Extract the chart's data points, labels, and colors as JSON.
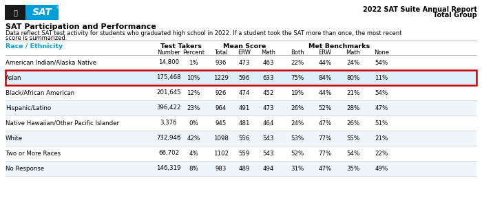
{
  "report_title_line1": "2022 SAT Suite Annual Report",
  "report_title_line2": "Total Group",
  "section_title": "SAT Participation and Performance",
  "desc_line1": "Data reflect SAT test activity for students who graduated high school in 2022. If a student took the SAT more than once, the most recent",
  "desc_line2": "score is summarized.",
  "col_headers": {
    "race": "Race / Ethnicity",
    "test_takers": "Test Takers",
    "mean_score": "Mean Score",
    "met_benchmarks": "Met Benchmarks"
  },
  "sub_headers": [
    "Number",
    "Percent",
    "Total",
    "ERW",
    "Math",
    "Both",
    "ERW",
    "Math",
    "None"
  ],
  "rows": [
    {
      "race": "American Indian/Alaska Native",
      "number": "14,800",
      "percent": "1%",
      "total": "936",
      "erw": "473",
      "math": "463",
      "both": "22%",
      "erw2": "44%",
      "math2": "24%",
      "none": "54%",
      "highlight": false
    },
    {
      "race": "Asian",
      "number": "175,468",
      "percent": "10%",
      "total": "1229",
      "erw": "596",
      "math": "633",
      "both": "75%",
      "erw2": "84%",
      "math2": "80%",
      "none": "11%",
      "highlight": true
    },
    {
      "race": "Black/African American",
      "number": "201,645",
      "percent": "12%",
      "total": "926",
      "erw": "474",
      "math": "452",
      "both": "19%",
      "erw2": "44%",
      "math2": "21%",
      "none": "54%",
      "highlight": false
    },
    {
      "race": "Hispanic/Latino",
      "number": "396,422",
      "percent": "23%",
      "total": "964",
      "erw": "491",
      "math": "473",
      "both": "26%",
      "erw2": "52%",
      "math2": "28%",
      "none": "47%",
      "highlight": false
    },
    {
      "race": "Native Hawaiian/Other Pacific Islander",
      "number": "3,376",
      "percent": "0%",
      "total": "945",
      "erw": "481",
      "math": "464",
      "both": "24%",
      "erw2": "47%",
      "math2": "26%",
      "none": "51%",
      "highlight": false
    },
    {
      "race": "White",
      "number": "732,946",
      "percent": "42%",
      "total": "1098",
      "erw": "556",
      "math": "543",
      "both": "53%",
      "erw2": "77%",
      "math2": "55%",
      "none": "21%",
      "highlight": false
    },
    {
      "race": "Two or More Races",
      "number": "66,702",
      "percent": "4%",
      "total": "1102",
      "erw": "559",
      "math": "543",
      "both": "52%",
      "erw2": "77%",
      "math2": "54%",
      "none": "22%",
      "highlight": false
    },
    {
      "race": "No Response",
      "number": "146,319",
      "percent": "8%",
      "total": "983",
      "erw": "489",
      "math": "494",
      "both": "31%",
      "erw2": "47%",
      "math2": "35%",
      "none": "49%",
      "highlight": false
    }
  ],
  "logo_black_bg": "#1a1a1a",
  "logo_blue_bg": "#009FDA",
  "highlight_row_bg": "#ddf0fa",
  "highlight_border": "#CC0000",
  "header_color": "#009FDA",
  "alt_row_bg": "#eef6fc",
  "white_bg": "#FFFFFF",
  "divider_color": "#bbbbbb",
  "header_divider_color": "#aaaaaa"
}
